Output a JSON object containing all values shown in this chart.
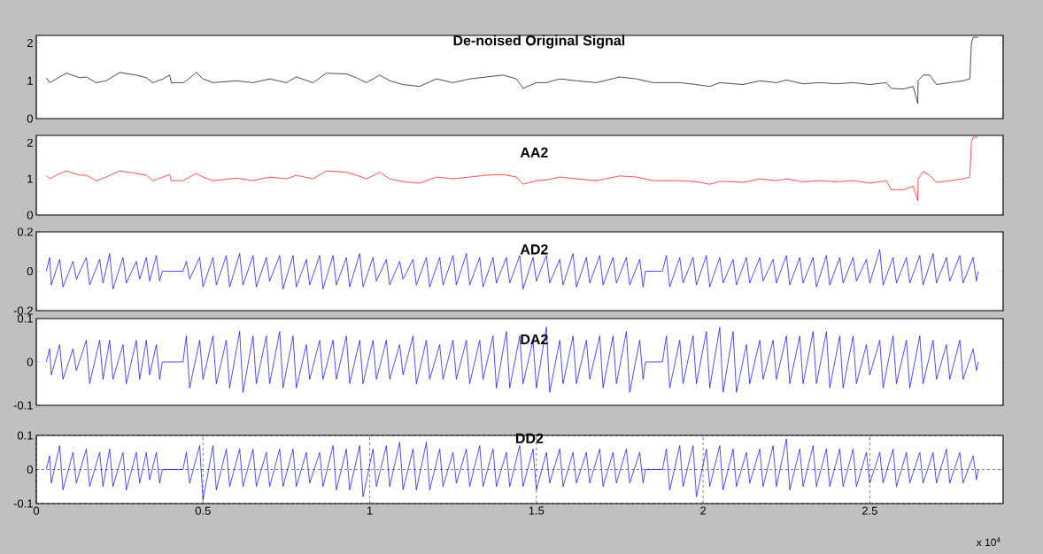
{
  "chart_data": [
    {
      "type": "line",
      "title": "De-noised Original Signal",
      "xlim": [
        0,
        2.9
      ],
      "ylim": [
        0,
        2.2
      ],
      "yticks": [
        0,
        1,
        2
      ],
      "tick_labels": "y",
      "x": [
        0.03,
        0.04,
        0.06,
        0.09,
        0.13,
        0.15,
        0.18,
        0.21,
        0.25,
        0.3,
        0.33,
        0.35,
        0.38,
        0.4,
        0.405,
        0.44,
        0.45,
        0.48,
        0.5,
        0.53,
        0.6,
        0.65,
        0.7,
        0.75,
        0.78,
        0.83,
        0.87,
        0.93,
        0.96,
        0.99,
        1.03,
        1.06,
        1.1,
        1.15,
        1.2,
        1.25,
        1.3,
        1.35,
        1.4,
        1.44,
        1.46,
        1.5,
        1.53,
        1.57,
        1.62,
        1.68,
        1.75,
        1.8,
        1.85,
        1.93,
        1.98,
        2.02,
        2.05,
        2.09,
        2.12,
        2.17,
        2.22,
        2.25,
        2.3,
        2.35,
        2.4,
        2.45,
        2.5,
        2.55,
        2.564,
        2.6,
        2.63,
        2.644,
        2.645,
        2.66,
        2.68,
        2.7,
        2.74,
        2.78,
        2.8,
        2.805,
        2.81,
        2.825
      ],
      "series": [
        {
          "color": "#000000",
          "values": [
            1.08,
            0.95,
            1.05,
            1.2,
            1.08,
            1.1,
            0.95,
            1.0,
            1.22,
            1.15,
            1.08,
            0.95,
            1.05,
            1.15,
            0.95,
            0.95,
            1.0,
            1.22,
            1.05,
            0.95,
            1.0,
            0.95,
            1.05,
            0.95,
            1.1,
            0.95,
            1.2,
            1.18,
            1.08,
            0.95,
            1.15,
            1.0,
            0.9,
            0.85,
            1.05,
            0.95,
            1.05,
            1.1,
            1.15,
            1.05,
            0.8,
            0.95,
            0.95,
            1.05,
            1.0,
            0.95,
            1.1,
            1.05,
            0.95,
            0.95,
            0.9,
            0.85,
            0.95,
            0.92,
            0.9,
            1.0,
            0.95,
            1.02,
            0.92,
            0.95,
            0.92,
            0.95,
            0.9,
            0.95,
            0.8,
            0.78,
            0.85,
            0.4,
            1.0,
            1.15,
            1.15,
            0.9,
            0.95,
            1.0,
            1.05,
            2.0,
            2.15,
            2.15
          ]
        }
      ]
    },
    {
      "type": "line",
      "title": "AA2",
      "xlim": [
        0,
        2.9
      ],
      "ylim": [
        0,
        2.2
      ],
      "yticks": [
        0,
        1,
        2
      ],
      "tick_labels": "y",
      "x": [
        0.03,
        0.04,
        0.06,
        0.09,
        0.13,
        0.15,
        0.18,
        0.21,
        0.25,
        0.3,
        0.33,
        0.35,
        0.38,
        0.4,
        0.405,
        0.44,
        0.45,
        0.48,
        0.5,
        0.53,
        0.6,
        0.65,
        0.7,
        0.75,
        0.78,
        0.83,
        0.87,
        0.93,
        0.96,
        0.99,
        1.03,
        1.06,
        1.1,
        1.15,
        1.2,
        1.25,
        1.3,
        1.35,
        1.4,
        1.44,
        1.46,
        1.5,
        1.53,
        1.57,
        1.62,
        1.68,
        1.75,
        1.8,
        1.85,
        1.93,
        1.98,
        2.02,
        2.05,
        2.09,
        2.12,
        2.17,
        2.22,
        2.25,
        2.3,
        2.35,
        2.4,
        2.45,
        2.5,
        2.55,
        2.564,
        2.6,
        2.63,
        2.644,
        2.645,
        2.66,
        2.68,
        2.7,
        2.74,
        2.78,
        2.8,
        2.805,
        2.81,
        2.825
      ],
      "series": [
        {
          "color": "#ff0000",
          "values": [
            1.1,
            1.0,
            1.1,
            1.22,
            1.1,
            1.1,
            0.95,
            1.05,
            1.22,
            1.15,
            1.1,
            0.95,
            1.05,
            1.12,
            0.95,
            0.95,
            1.0,
            1.15,
            1.05,
            0.95,
            1.02,
            0.95,
            1.05,
            1.0,
            1.1,
            1.0,
            1.22,
            1.18,
            1.1,
            1.0,
            1.18,
            1.0,
            0.92,
            0.88,
            1.05,
            1.0,
            1.05,
            1.1,
            1.12,
            1.05,
            0.85,
            0.95,
            0.97,
            1.05,
            1.0,
            0.95,
            1.08,
            1.05,
            0.95,
            0.95,
            0.92,
            0.85,
            0.93,
            0.92,
            0.9,
            1.0,
            0.95,
            1.0,
            0.92,
            0.95,
            0.92,
            0.95,
            0.88,
            0.95,
            0.7,
            0.7,
            0.8,
            0.4,
            1.0,
            1.2,
            1.1,
            0.9,
            0.95,
            1.0,
            1.05,
            2.0,
            2.15,
            2.15
          ]
        }
      ]
    },
    {
      "type": "line",
      "title": "AD2",
      "xlim": [
        0,
        2.9
      ],
      "ylim": [
        -0.2,
        0.2
      ],
      "yticks": [
        -0.2,
        0,
        0.2
      ],
      "tick_labels": "y",
      "x": [
        0.03,
        0.04,
        0.045,
        0.07,
        0.08,
        0.11,
        0.12,
        0.15,
        0.16,
        0.19,
        0.2,
        0.22,
        0.23,
        0.26,
        0.27,
        0.3,
        0.31,
        0.33,
        0.34,
        0.36,
        0.37,
        0.378,
        0.44,
        0.45,
        0.46,
        0.49,
        0.5,
        0.53,
        0.54,
        0.57,
        0.58,
        0.61,
        0.62,
        0.65,
        0.66,
        0.69,
        0.7,
        0.73,
        0.74,
        0.77,
        0.78,
        0.81,
        0.82,
        0.85,
        0.86,
        0.89,
        0.9,
        0.93,
        0.94,
        0.97,
        0.98,
        1.01,
        1.02,
        1.05,
        1.06,
        1.09,
        1.1,
        1.13,
        1.14,
        1.17,
        1.18,
        1.21,
        1.22,
        1.25,
        1.26,
        1.29,
        1.3,
        1.33,
        1.34,
        1.37,
        1.38,
        1.41,
        1.42,
        1.45,
        1.46,
        1.49,
        1.5,
        1.53,
        1.54,
        1.57,
        1.58,
        1.61,
        1.62,
        1.65,
        1.66,
        1.69,
        1.7,
        1.73,
        1.74,
        1.77,
        1.78,
        1.81,
        1.82,
        1.827,
        1.878,
        1.89,
        1.9,
        1.93,
        1.94,
        1.97,
        1.98,
        2.01,
        2.02,
        2.05,
        2.06,
        2.09,
        2.1,
        2.13,
        2.14,
        2.17,
        2.18,
        2.21,
        2.22,
        2.25,
        2.26,
        2.29,
        2.3,
        2.33,
        2.34,
        2.37,
        2.38,
        2.41,
        2.42,
        2.45,
        2.46,
        2.49,
        2.5,
        2.53,
        2.54,
        2.57,
        2.58,
        2.61,
        2.62,
        2.65,
        2.66,
        2.69,
        2.7,
        2.73,
        2.74,
        2.77,
        2.78,
        2.81,
        2.82,
        2.825
      ],
      "series": [
        {
          "color": "#0000ff",
          "values": [
            0,
            0.07,
            -0.07,
            0.06,
            -0.08,
            0.05,
            -0.04,
            0.07,
            -0.07,
            0.06,
            -0.06,
            0.09,
            -0.09,
            0.07,
            -0.06,
            0.05,
            -0.04,
            0.07,
            -0.05,
            0.08,
            -0.05,
            0,
            0,
            0.05,
            -0.04,
            0.07,
            -0.08,
            0.07,
            -0.07,
            0.08,
            -0.08,
            0.09,
            -0.07,
            0.08,
            -0.08,
            0.07,
            -0.05,
            0.08,
            -0.09,
            0.08,
            -0.08,
            0.06,
            -0.07,
            0.08,
            -0.09,
            0.08,
            -0.07,
            0.07,
            -0.08,
            0.09,
            -0.08,
            0.07,
            -0.05,
            0.06,
            -0.07,
            0.05,
            -0.04,
            0.06,
            -0.07,
            0.07,
            -0.08,
            0.07,
            -0.07,
            0.08,
            -0.07,
            0.09,
            -0.07,
            0.07,
            -0.08,
            0.07,
            -0.06,
            0.07,
            -0.06,
            0.08,
            -0.09,
            0.07,
            -0.05,
            0.08,
            -0.06,
            0.06,
            -0.07,
            0.09,
            -0.08,
            0.07,
            -0.06,
            0.08,
            -0.07,
            0.07,
            -0.06,
            0.07,
            -0.07,
            0.06,
            -0.08,
            0,
            0,
            0.08,
            -0.08,
            0.07,
            -0.06,
            0.07,
            -0.07,
            0.08,
            -0.08,
            0.07,
            -0.06,
            0.06,
            -0.07,
            0.07,
            -0.06,
            0.07,
            -0.05,
            0.06,
            -0.06,
            0.08,
            -0.07,
            0.07,
            -0.06,
            0.07,
            -0.08,
            0.08,
            -0.07,
            0.07,
            -0.06,
            0.07,
            -0.05,
            0.06,
            -0.06,
            0.11,
            -0.07,
            0.07,
            -0.06,
            0.07,
            -0.06,
            0.08,
            -0.07,
            0.09,
            -0.06,
            0.07,
            -0.05,
            0.08,
            -0.06,
            0.07,
            -0.05,
            0
          ]
        }
      ]
    },
    {
      "type": "line",
      "title": "DA2",
      "xlim": [
        0,
        2.9
      ],
      "ylim": [
        -0.1,
        0.1
      ],
      "yticks": [
        -0.1,
        0,
        0.1
      ],
      "tick_labels": "y",
      "x": [
        0.03,
        0.04,
        0.045,
        0.07,
        0.08,
        0.11,
        0.12,
        0.15,
        0.16,
        0.19,
        0.2,
        0.22,
        0.23,
        0.26,
        0.27,
        0.3,
        0.31,
        0.33,
        0.34,
        0.36,
        0.37,
        0.378,
        0.44,
        0.45,
        0.46,
        0.49,
        0.5,
        0.53,
        0.54,
        0.57,
        0.58,
        0.61,
        0.62,
        0.65,
        0.66,
        0.69,
        0.7,
        0.73,
        0.74,
        0.77,
        0.78,
        0.81,
        0.82,
        0.85,
        0.86,
        0.89,
        0.9,
        0.93,
        0.94,
        0.97,
        0.98,
        1.01,
        1.02,
        1.05,
        1.06,
        1.09,
        1.1,
        1.13,
        1.14,
        1.17,
        1.18,
        1.21,
        1.22,
        1.25,
        1.26,
        1.29,
        1.3,
        1.33,
        1.34,
        1.37,
        1.38,
        1.41,
        1.42,
        1.45,
        1.46,
        1.49,
        1.5,
        1.53,
        1.54,
        1.57,
        1.58,
        1.61,
        1.62,
        1.65,
        1.66,
        1.69,
        1.7,
        1.73,
        1.74,
        1.77,
        1.78,
        1.81,
        1.82,
        1.827,
        1.878,
        1.89,
        1.9,
        1.93,
        1.94,
        1.97,
        1.98,
        2.01,
        2.02,
        2.05,
        2.06,
        2.09,
        2.1,
        2.13,
        2.14,
        2.17,
        2.18,
        2.21,
        2.22,
        2.25,
        2.26,
        2.29,
        2.3,
        2.33,
        2.34,
        2.37,
        2.38,
        2.41,
        2.42,
        2.45,
        2.46,
        2.49,
        2.5,
        2.53,
        2.54,
        2.57,
        2.58,
        2.61,
        2.62,
        2.65,
        2.66,
        2.69,
        2.7,
        2.73,
        2.74,
        2.77,
        2.78,
        2.81,
        2.82,
        2.825
      ],
      "series": [
        {
          "color": "#0000ff",
          "values": [
            0,
            0.03,
            -0.03,
            0.04,
            -0.04,
            0.03,
            -0.02,
            0.05,
            -0.05,
            0.05,
            -0.04,
            0.05,
            -0.04,
            0.04,
            -0.05,
            0.05,
            -0.04,
            0.05,
            -0.03,
            0.04,
            -0.04,
            0,
            0,
            0.06,
            -0.06,
            0.05,
            -0.04,
            0.06,
            -0.05,
            0.05,
            -0.06,
            0.07,
            -0.07,
            0.06,
            -0.05,
            0.06,
            -0.05,
            0.07,
            -0.06,
            0.06,
            -0.06,
            0.04,
            -0.04,
            0.05,
            -0.04,
            0.05,
            -0.04,
            0.06,
            -0.05,
            0.05,
            -0.05,
            0.05,
            -0.04,
            0.05,
            -0.04,
            0.04,
            -0.03,
            0.06,
            -0.05,
            0.05,
            -0.04,
            0.04,
            -0.04,
            0.05,
            -0.04,
            0.05,
            -0.05,
            0.05,
            -0.04,
            0.06,
            -0.06,
            0.07,
            -0.06,
            0.06,
            -0.05,
            0.05,
            -0.06,
            0.08,
            -0.07,
            0.05,
            -0.05,
            0.06,
            -0.05,
            0.05,
            -0.04,
            0.06,
            -0.06,
            0.06,
            -0.05,
            0.07,
            -0.07,
            0.05,
            -0.04,
            0,
            0,
            0.06,
            -0.06,
            0.05,
            -0.05,
            0.06,
            -0.05,
            0.07,
            -0.06,
            0.08,
            -0.07,
            0.07,
            -0.07,
            0.04,
            -0.05,
            0.05,
            -0.04,
            0.05,
            -0.04,
            0.06,
            -0.05,
            0.06,
            -0.05,
            0.07,
            -0.05,
            0.07,
            -0.06,
            0.06,
            -0.06,
            0.06,
            -0.05,
            0.04,
            -0.03,
            0.05,
            -0.06,
            0.06,
            -0.05,
            0.05,
            -0.06,
            0.06,
            -0.05,
            0.05,
            -0.04,
            0.04,
            -0.04,
            0.05,
            -0.04,
            0.03,
            -0.02,
            0
          ]
        }
      ]
    },
    {
      "type": "line",
      "title": "DD2",
      "xlim": [
        0,
        2.9
      ],
      "ylim": [
        -0.1,
        0.1
      ],
      "yticks": [
        -0.1,
        0,
        0.1
      ],
      "xticks": [
        0,
        0.5,
        1,
        1.5,
        2,
        2.5
      ],
      "grid": true,
      "annotations": [
        "x 10$^{4}$"
      ],
      "x": [
        0.03,
        0.04,
        0.045,
        0.07,
        0.08,
        0.11,
        0.12,
        0.15,
        0.16,
        0.19,
        0.2,
        0.22,
        0.23,
        0.26,
        0.27,
        0.3,
        0.31,
        0.33,
        0.34,
        0.36,
        0.37,
        0.378,
        0.44,
        0.45,
        0.46,
        0.49,
        0.5,
        0.53,
        0.54,
        0.57,
        0.58,
        0.61,
        0.62,
        0.65,
        0.66,
        0.69,
        0.7,
        0.73,
        0.74,
        0.77,
        0.78,
        0.81,
        0.82,
        0.85,
        0.86,
        0.89,
        0.9,
        0.93,
        0.94,
        0.97,
        0.98,
        1.01,
        1.02,
        1.05,
        1.06,
        1.09,
        1.1,
        1.13,
        1.14,
        1.17,
        1.18,
        1.21,
        1.22,
        1.25,
        1.26,
        1.29,
        1.3,
        1.33,
        1.34,
        1.37,
        1.38,
        1.41,
        1.42,
        1.45,
        1.46,
        1.49,
        1.5,
        1.53,
        1.54,
        1.57,
        1.58,
        1.61,
        1.62,
        1.65,
        1.66,
        1.69,
        1.7,
        1.73,
        1.74,
        1.77,
        1.78,
        1.81,
        1.82,
        1.827,
        1.878,
        1.89,
        1.9,
        1.93,
        1.94,
        1.97,
        1.98,
        2.01,
        2.02,
        2.05,
        2.06,
        2.09,
        2.1,
        2.13,
        2.14,
        2.17,
        2.18,
        2.21,
        2.22,
        2.25,
        2.26,
        2.29,
        2.3,
        2.33,
        2.34,
        2.37,
        2.38,
        2.41,
        2.42,
        2.45,
        2.46,
        2.49,
        2.5,
        2.53,
        2.54,
        2.57,
        2.58,
        2.61,
        2.62,
        2.65,
        2.66,
        2.69,
        2.7,
        2.73,
        2.74,
        2.77,
        2.78,
        2.81,
        2.82,
        2.825
      ],
      "series": [
        {
          "color": "#0000ff",
          "values": [
            0,
            0.04,
            -0.04,
            0.07,
            -0.06,
            0.05,
            -0.04,
            0.06,
            -0.05,
            0.05,
            -0.05,
            0.06,
            -0.05,
            0.05,
            -0.06,
            0.05,
            -0.04,
            0.05,
            -0.03,
            0.05,
            -0.04,
            0,
            0,
            0.05,
            -0.04,
            0.07,
            -0.09,
            0.07,
            -0.06,
            0.06,
            -0.05,
            0.06,
            -0.05,
            0.06,
            -0.05,
            0.05,
            -0.05,
            0.06,
            -0.05,
            0.06,
            -0.05,
            0.05,
            -0.04,
            0.05,
            -0.05,
            0.07,
            -0.06,
            0.06,
            -0.06,
            0.07,
            -0.08,
            0.06,
            -0.05,
            0.07,
            -0.05,
            0.08,
            -0.06,
            0.06,
            -0.06,
            0.08,
            -0.06,
            0.06,
            -0.05,
            0.05,
            -0.04,
            0.06,
            -0.05,
            0.07,
            -0.05,
            0.06,
            -0.05,
            0.05,
            -0.05,
            0.07,
            -0.05,
            0.06,
            -0.06,
            0.05,
            -0.04,
            0.06,
            -0.05,
            0.05,
            -0.04,
            0.05,
            -0.04,
            0.06,
            -0.05,
            0.05,
            -0.04,
            0.06,
            -0.04,
            0.05,
            -0.04,
            0,
            0,
            0.06,
            -0.06,
            0.07,
            -0.05,
            0.07,
            -0.08,
            0.06,
            -0.05,
            0.07,
            -0.06,
            0.06,
            -0.05,
            0.05,
            -0.04,
            0.06,
            -0.05,
            0.07,
            -0.05,
            0.09,
            -0.06,
            0.06,
            -0.05,
            0.07,
            -0.05,
            0.06,
            -0.05,
            0.06,
            -0.05,
            0.06,
            -0.05,
            0.05,
            -0.04,
            0.05,
            -0.04,
            0.06,
            -0.05,
            0.05,
            -0.04,
            0.05,
            -0.04,
            0.05,
            -0.04,
            0.06,
            -0.04,
            0.05,
            -0.04,
            0.04,
            -0.03,
            0
          ]
        }
      ]
    }
  ]
}
